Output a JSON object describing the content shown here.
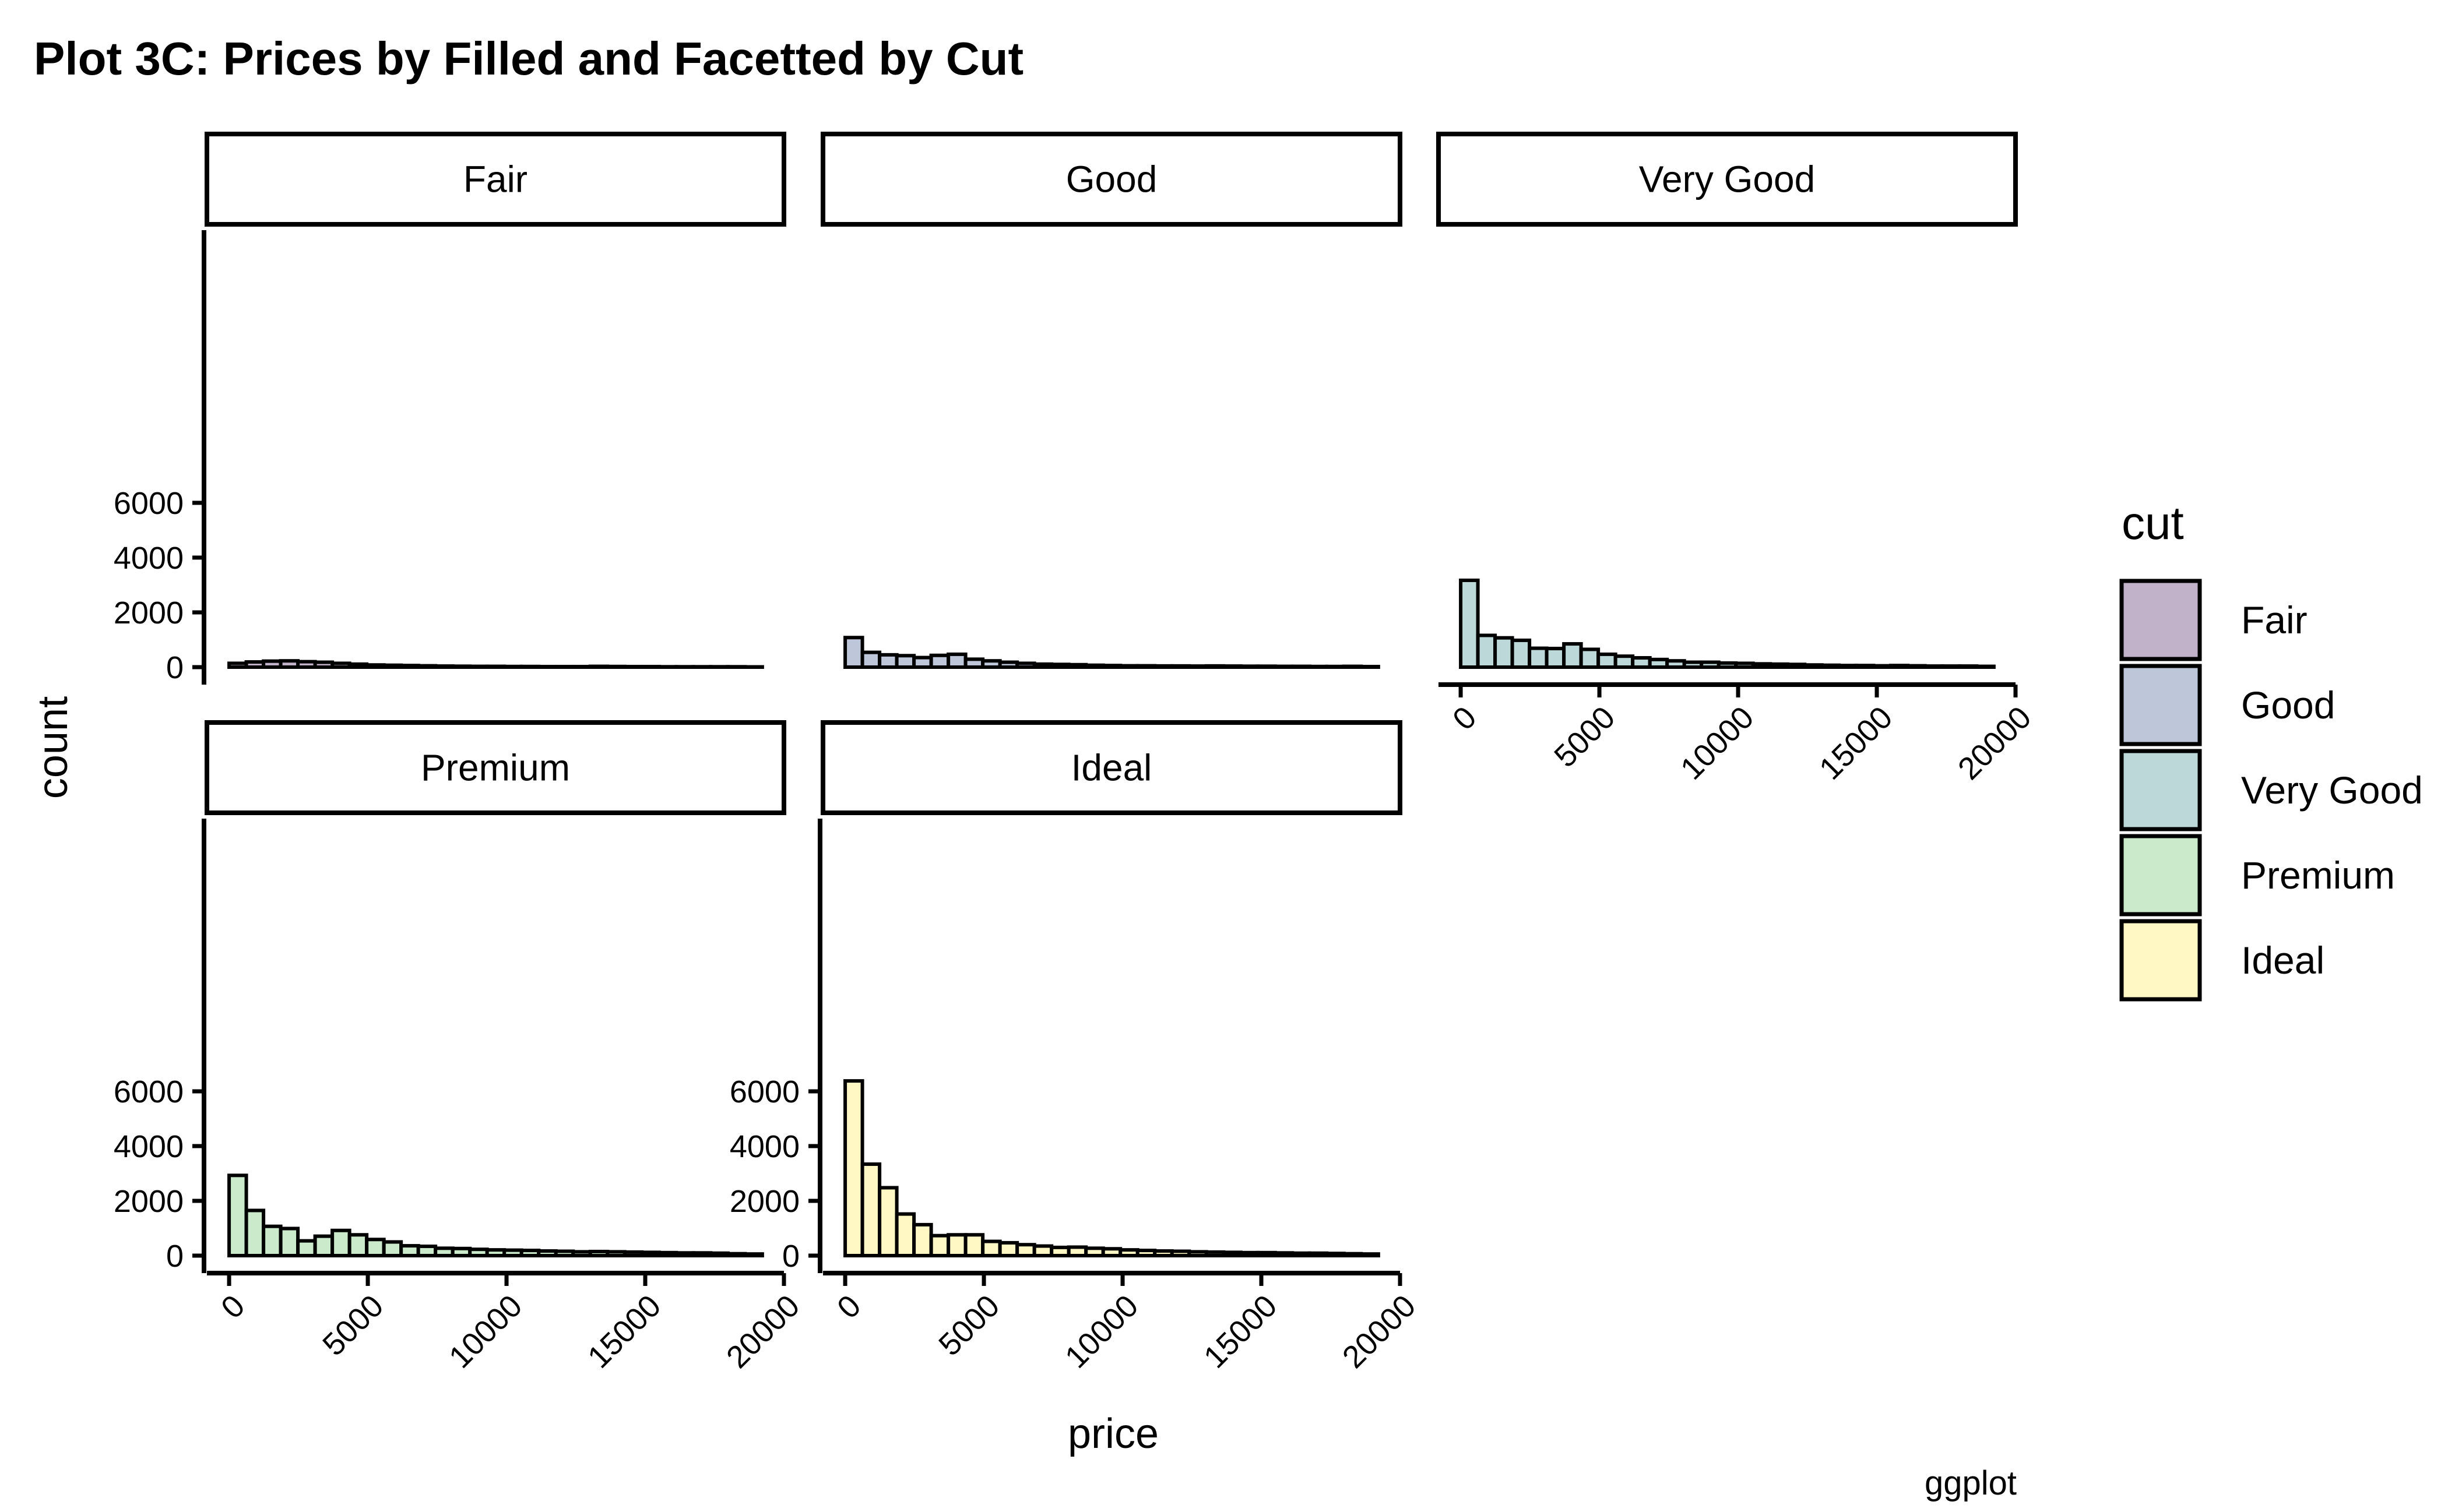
{
  "chart_data": {
    "type": "bar",
    "title": "Plot 3C: Prices by Filled and Facetted by Cut",
    "xlabel": "price",
    "ylabel": "count",
    "caption": "ggplot",
    "xlim": [
      -800,
      20000
    ],
    "ylim": [
      0,
      6700
    ],
    "x_ticks": [
      0,
      5000,
      10000,
      15000,
      20000
    ],
    "y_ticks": [
      0,
      2000,
      4000,
      6000
    ],
    "bin_width": 620,
    "bin_start": 0,
    "legend": {
      "title": "cut",
      "position": "right"
    },
    "grid": false,
    "series": [
      {
        "name": "Fair",
        "color": "#C2B2C9",
        "values": [
          140,
          190,
          220,
          230,
          200,
          180,
          140,
          110,
          80,
          70,
          60,
          50,
          40,
          35,
          30,
          30,
          25,
          25,
          20,
          20,
          20,
          30,
          25,
          20,
          20,
          15,
          15,
          15,
          15,
          15,
          10
        ]
      },
      {
        "name": "Good",
        "color": "#BEC6D9",
        "values": [
          1080,
          540,
          450,
          420,
          350,
          430,
          470,
          290,
          230,
          180,
          140,
          110,
          100,
          90,
          70,
          60,
          50,
          50,
          45,
          45,
          40,
          45,
          40,
          35,
          35,
          30,
          30,
          25,
          25,
          30,
          20
        ]
      },
      {
        "name": "Very Good",
        "color": "#BCD8D8",
        "values": [
          3170,
          1160,
          1070,
          980,
          690,
          680,
          850,
          650,
          470,
          400,
          340,
          280,
          230,
          180,
          180,
          150,
          140,
          120,
          110,
          100,
          80,
          70,
          60,
          60,
          50,
          60,
          50,
          40,
          40,
          40,
          30
        ]
      },
      {
        "name": "Premium",
        "color": "#CAEACB",
        "values": [
          2930,
          1650,
          1070,
          990,
          540,
          710,
          920,
          760,
          590,
          500,
          360,
          340,
          270,
          260,
          230,
          210,
          200,
          190,
          170,
          160,
          140,
          150,
          140,
          130,
          120,
          110,
          100,
          100,
          90,
          70,
          60
        ]
      },
      {
        "name": "Ideal",
        "color": "#FFF8C4",
        "values": [
          6380,
          3340,
          2480,
          1520,
          1130,
          730,
          760,
          760,
          520,
          470,
          400,
          350,
          300,
          310,
          270,
          250,
          210,
          190,
          170,
          160,
          140,
          130,
          120,
          110,
          110,
          100,
          90,
          90,
          80,
          70,
          60
        ]
      }
    ]
  }
}
